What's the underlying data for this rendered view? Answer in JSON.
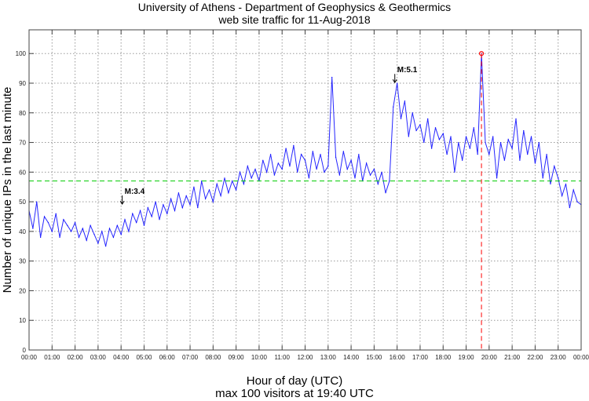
{
  "chart_data": {
    "type": "line",
    "title": [
      "University of Athens - Department of Geophysics & Geothermics",
      "web site traffic for 11-Aug-2018"
    ],
    "xlabel": [
      "Hour of day (UTC)",
      "max 100 visitors at 19:40 UTC"
    ],
    "ylabel": "Number of unique IPs in the last minute",
    "ylim": [
      0,
      108
    ],
    "xlim_hours": [
      0,
      24
    ],
    "yticks": [
      0,
      10,
      20,
      30,
      40,
      50,
      60,
      70,
      80,
      90,
      100
    ],
    "xticks": [
      "00:00",
      "01:00",
      "02:00",
      "03:00",
      "04:00",
      "05:00",
      "06:00",
      "07:00",
      "08:00",
      "09:00",
      "10:00",
      "11:00",
      "12:00",
      "13:00",
      "14:00",
      "15:00",
      "16:00",
      "17:00",
      "18:00",
      "19:00",
      "20:00",
      "21:00",
      "22:00",
      "23:00",
      "00:00"
    ],
    "grid": true,
    "sample_interval_minutes": 10,
    "series": [
      {
        "name": "unique IPs",
        "color": "#0000ff",
        "values": [
          47,
          41,
          50,
          38,
          45,
          43,
          40,
          46,
          38,
          44,
          42,
          40,
          43,
          38,
          41,
          37,
          42,
          39,
          36,
          40,
          35,
          41,
          38,
          42,
          39,
          44,
          40,
          46,
          43,
          47,
          42,
          48,
          45,
          50,
          44,
          49,
          46,
          51,
          47,
          53,
          48,
          52,
          49,
          55,
          48,
          57,
          51,
          54,
          50,
          56,
          52,
          58,
          53,
          57,
          54,
          60,
          56,
          62,
          58,
          61,
          57,
          64,
          60,
          66,
          59,
          63,
          61,
          68,
          62,
          69,
          60,
          66,
          64,
          58,
          67,
          61,
          66,
          60,
          62,
          92,
          65,
          59,
          67,
          61,
          64,
          58,
          66,
          57,
          63,
          59,
          61,
          56,
          60,
          53,
          57,
          82,
          90,
          78,
          84,
          72,
          80,
          74,
          76,
          70,
          78,
          68,
          75,
          71,
          73,
          66,
          72,
          60,
          70,
          64,
          72,
          68,
          75,
          66,
          100,
          70,
          66,
          72,
          58,
          70,
          64,
          71,
          68,
          78,
          64,
          74,
          66,
          72,
          63,
          70,
          58,
          66,
          56,
          62,
          58,
          52,
          56,
          48,
          54,
          50,
          49
        ]
      }
    ],
    "mean_line": {
      "value": 57,
      "color": "#00cc00"
    },
    "max_marker": {
      "hour": 19.6667,
      "value": 100,
      "color": "#ff0000"
    },
    "annotations": [
      {
        "text": "M:3.4",
        "hour": 4.05,
        "value": 50
      },
      {
        "text": "M:5.1",
        "hour": 15.9,
        "value": 91
      }
    ]
  }
}
